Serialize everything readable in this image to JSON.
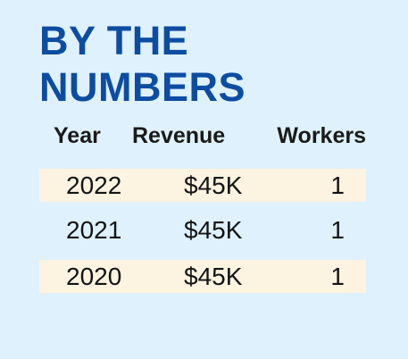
{
  "title": {
    "line1": "BY THE",
    "line2": "NUMBERS"
  },
  "table": {
    "headers": [
      "Year",
      "Revenue",
      "Workers"
    ],
    "rows": [
      {
        "year": "2022",
        "revenue": "$45K",
        "workers": "1"
      },
      {
        "year": "2021",
        "revenue": "$45K",
        "workers": "1"
      },
      {
        "year": "2020",
        "revenue": "$45K",
        "workers": "1"
      }
    ]
  },
  "colors": {
    "background": "#dff1fc",
    "title": "#0d4da1",
    "row_shade": "#fdf3e1",
    "text": "#1a1a1a"
  }
}
